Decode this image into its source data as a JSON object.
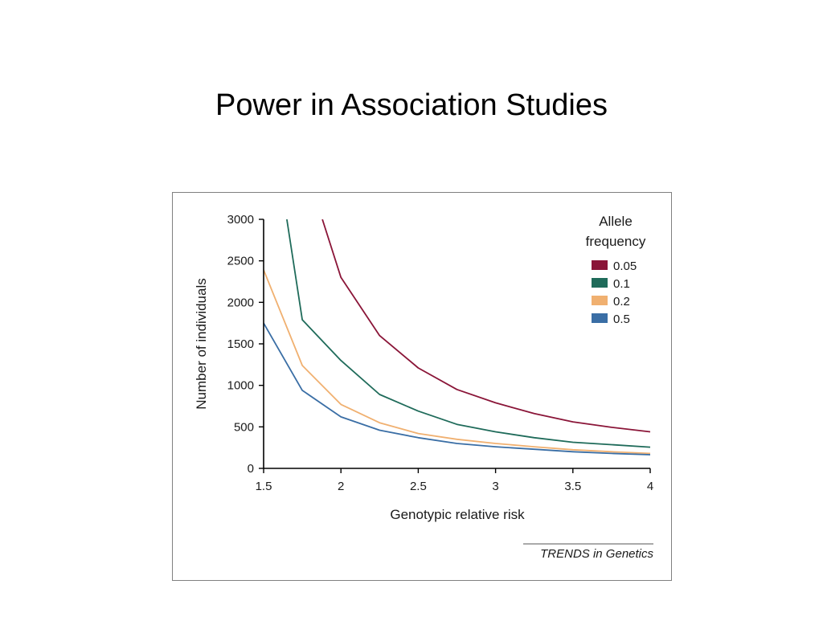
{
  "slide": {
    "title": "Power in Association Studies"
  },
  "chart_data": {
    "type": "line",
    "title": "",
    "xlabel": "Genotypic relative risk",
    "ylabel": "Number of individuals",
    "xlim": [
      1.5,
      4
    ],
    "ylim": [
      0,
      3000
    ],
    "x_ticks": [
      1.5,
      2,
      2.5,
      3,
      3.5,
      4
    ],
    "x_tick_labels": [
      "1.5",
      "2",
      "2.5",
      "3",
      "3.5",
      "4"
    ],
    "y_ticks": [
      0,
      500,
      1000,
      1500,
      2000,
      2500,
      3000
    ],
    "y_tick_labels": [
      "0",
      "500",
      "1000",
      "1500",
      "2000",
      "2500",
      "3000"
    ],
    "grid": false,
    "legend": {
      "title_lines": [
        "Allele",
        "frequency"
      ],
      "placement": "top-right"
    },
    "series": [
      {
        "name": "0.05",
        "color": "#8a1538",
        "x": [
          1.88,
          2,
          2.25,
          2.5,
          2.75,
          3,
          3.25,
          3.5,
          3.75,
          4
        ],
        "y": [
          3000,
          2300,
          1600,
          1210,
          950,
          790,
          660,
          560,
          495,
          440
        ]
      },
      {
        "name": "0.1",
        "color": "#1f6b5a",
        "x": [
          1.65,
          1.75,
          2,
          2.25,
          2.5,
          2.75,
          3,
          3.25,
          3.5,
          3.75,
          4
        ],
        "y": [
          3000,
          1790,
          1300,
          890,
          690,
          530,
          440,
          370,
          315,
          285,
          255
        ]
      },
      {
        "name": "0.2",
        "color": "#f0b070",
        "x": [
          1.5,
          1.75,
          2,
          2.25,
          2.5,
          2.75,
          3,
          3.25,
          3.5,
          3.75,
          4
        ],
        "y": [
          2390,
          1240,
          770,
          550,
          420,
          350,
          300,
          260,
          225,
          200,
          180
        ]
      },
      {
        "name": "0.5",
        "color": "#3a6ea5",
        "x": [
          1.5,
          1.75,
          2,
          2.25,
          2.5,
          2.75,
          3,
          3.25,
          3.5,
          3.75,
          4
        ],
        "y": [
          1750,
          940,
          620,
          460,
          370,
          300,
          260,
          230,
          200,
          180,
          165
        ]
      }
    ],
    "source": "TRENDS in Genetics"
  }
}
